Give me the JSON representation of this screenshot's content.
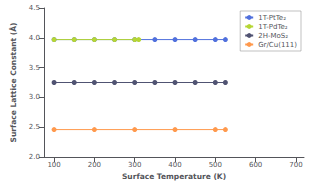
{
  "chart_data": {
    "type": "line",
    "xlabel": "Surface Temperature (K)",
    "ylabel": "Surface Lattice Constant (Å)",
    "xlim": [
      75,
      720
    ],
    "ylim": [
      2.0,
      4.5
    ],
    "xticks": [
      100,
      200,
      300,
      400,
      500,
      600,
      700
    ],
    "yticks": [
      {
        "value": 2.0,
        "label": "2.0"
      },
      2.5,
      {
        "value": 3.0,
        "label": "3.0"
      },
      3.5,
      {
        "value": 4.0,
        "label": "4.0"
      },
      4.5
    ],
    "grid": false,
    "legend": "upper right",
    "marker": "circle",
    "series": [
      {
        "name": "1T-PtTe₂",
        "x": [
          100,
          150,
          200,
          250,
          300,
          350,
          400,
          450,
          500,
          525
        ],
        "values": [
          3.97,
          3.97,
          3.97,
          3.97,
          3.97,
          3.97,
          3.97,
          3.97,
          3.97,
          3.97
        ]
      },
      {
        "name": "1T-PdTe₂",
        "x": [
          100,
          150,
          200,
          250,
          300,
          310
        ],
        "values": [
          3.97,
          3.97,
          3.97,
          3.97,
          3.97,
          3.97
        ]
      },
      {
        "name": "2H-MoS₂",
        "x": [
          100,
          150,
          200,
          250,
          300,
          350,
          400,
          450,
          500,
          525
        ],
        "values": [
          3.25,
          3.25,
          3.25,
          3.25,
          3.25,
          3.25,
          3.25,
          3.25,
          3.25,
          3.25
        ]
      },
      {
        "name": "Gr/Cu(111)",
        "x": [
          100,
          200,
          300,
          400,
          500,
          525
        ],
        "values": [
          2.46,
          2.46,
          2.46,
          2.46,
          2.46,
          2.46
        ]
      }
    ]
  }
}
